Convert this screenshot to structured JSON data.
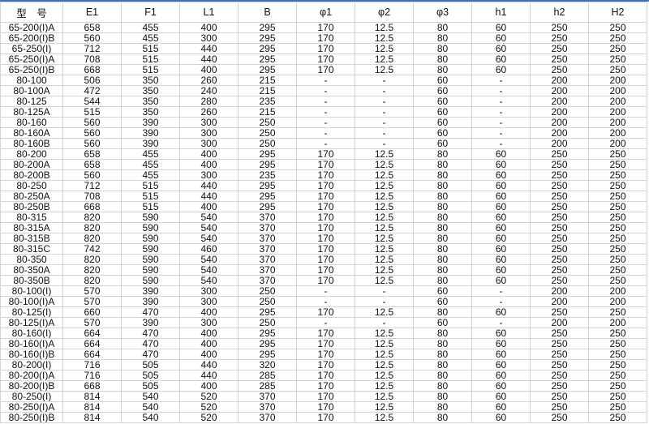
{
  "table": {
    "headers": [
      "型　号",
      "E1",
      "F1",
      "L1",
      "B",
      "φ1",
      "φ2",
      "φ3",
      "h1",
      "h2",
      "H2"
    ],
    "rows": [
      [
        "65-200(I)A",
        "658",
        "455",
        "400",
        "295",
        "170",
        "12.5",
        "80",
        "60",
        "250",
        "250"
      ],
      [
        "65-200(I)B",
        "560",
        "455",
        "300",
        "295",
        "170",
        "12.5",
        "80",
        "60",
        "250",
        "250"
      ],
      [
        "65-250(I)",
        "712",
        "515",
        "440",
        "295",
        "170",
        "12.5",
        "80",
        "60",
        "250",
        "250"
      ],
      [
        "65-250(I)A",
        "708",
        "515",
        "440",
        "295",
        "170",
        "12.5",
        "80",
        "60",
        "250",
        "250"
      ],
      [
        "65-250(I)B",
        "668",
        "515",
        "400",
        "295",
        "170",
        "12.5",
        "80",
        "60",
        "250",
        "250"
      ],
      [
        "80-100",
        "506",
        "350",
        "260",
        "215",
        "-",
        "-",
        "60",
        "-",
        "200",
        "200"
      ],
      [
        "80-100A",
        "472",
        "350",
        "240",
        "215",
        "-",
        "-",
        "60",
        "-",
        "200",
        "200"
      ],
      [
        "80-125",
        "544",
        "350",
        "280",
        "235",
        "-",
        "-",
        "60",
        "-",
        "200",
        "200"
      ],
      [
        "80-125A",
        "515",
        "350",
        "260",
        "215",
        "-",
        "-",
        "60",
        "-",
        "200",
        "200"
      ],
      [
        "80-160",
        "560",
        "390",
        "300",
        "250",
        "-",
        "-",
        "60",
        "-",
        "200",
        "200"
      ],
      [
        "80-160A",
        "560",
        "390",
        "300",
        "250",
        "-",
        "-",
        "60",
        "-",
        "200",
        "200"
      ],
      [
        "80-160B",
        "560",
        "390",
        "300",
        "250",
        "-",
        "-",
        "60",
        "-",
        "200",
        "200"
      ],
      [
        "80-200",
        "658",
        "455",
        "400",
        "295",
        "170",
        "12.5",
        "80",
        "60",
        "250",
        "250"
      ],
      [
        "80-200A",
        "658",
        "455",
        "400",
        "295",
        "170",
        "12.5",
        "80",
        "60",
        "250",
        "250"
      ],
      [
        "80-200B",
        "560",
        "455",
        "300",
        "235",
        "170",
        "12.5",
        "80",
        "60",
        "250",
        "250"
      ],
      [
        "80-250",
        "712",
        "515",
        "440",
        "295",
        "170",
        "12.5",
        "80",
        "60",
        "250",
        "250"
      ],
      [
        "80-250A",
        "708",
        "515",
        "440",
        "295",
        "170",
        "12.5",
        "80",
        "60",
        "250",
        "250"
      ],
      [
        "80-250B",
        "668",
        "515",
        "400",
        "295",
        "170",
        "12.5",
        "80",
        "60",
        "250",
        "250"
      ],
      [
        "80-315",
        "820",
        "590",
        "540",
        "370",
        "170",
        "12.5",
        "80",
        "60",
        "250",
        "250"
      ],
      [
        "80-315A",
        "820",
        "590",
        "540",
        "370",
        "170",
        "12.5",
        "80",
        "60",
        "250",
        "250"
      ],
      [
        "80-315B",
        "820",
        "590",
        "540",
        "370",
        "170",
        "12.5",
        "80",
        "60",
        "250",
        "250"
      ],
      [
        "80-315C",
        "742",
        "590",
        "460",
        "370",
        "170",
        "12.5",
        "80",
        "60",
        "250",
        "250"
      ],
      [
        "80-350",
        "820",
        "590",
        "540",
        "370",
        "170",
        "12.5",
        "80",
        "60",
        "250",
        "250"
      ],
      [
        "80-350A",
        "820",
        "590",
        "540",
        "370",
        "170",
        "12.5",
        "80",
        "60",
        "250",
        "250"
      ],
      [
        "80-350B",
        "820",
        "590",
        "540",
        "370",
        "170",
        "12.5",
        "80",
        "60",
        "250",
        "250"
      ],
      [
        "80-100(I)",
        "570",
        "390",
        "300",
        "250",
        "-",
        "-",
        "60",
        "-",
        "200",
        "200"
      ],
      [
        "80-100(I)A",
        "570",
        "390",
        "300",
        "250",
        "-",
        "-",
        "60",
        "-",
        "200",
        "200"
      ],
      [
        "80-125(I)",
        "660",
        "470",
        "400",
        "295",
        "170",
        "12.5",
        "80",
        "60",
        "250",
        "250"
      ],
      [
        "80-125(I)A",
        "570",
        "390",
        "300",
        "250",
        "-",
        "-",
        "60",
        "-",
        "200",
        "200"
      ],
      [
        "80-160(I)",
        "664",
        "470",
        "400",
        "295",
        "170",
        "12.5",
        "80",
        "60",
        "250",
        "250"
      ],
      [
        "80-160(I)A",
        "664",
        "470",
        "400",
        "295",
        "170",
        "12.5",
        "80",
        "60",
        "250",
        "250"
      ],
      [
        "80-160(I)B",
        "664",
        "470",
        "400",
        "295",
        "170",
        "12.5",
        "80",
        "60",
        "250",
        "250"
      ],
      [
        "80-200(I)",
        "716",
        "505",
        "440",
        "320",
        "170",
        "12.5",
        "80",
        "60",
        "250",
        "250"
      ],
      [
        "80-200(I)A",
        "716",
        "505",
        "440",
        "285",
        "170",
        "12.5",
        "80",
        "60",
        "250",
        "250"
      ],
      [
        "80-200(I)B",
        "668",
        "505",
        "400",
        "285",
        "170",
        "12.5",
        "80",
        "60",
        "250",
        "250"
      ],
      [
        "80-250(I)",
        "814",
        "540",
        "520",
        "370",
        "170",
        "12.5",
        "80",
        "60",
        "250",
        "250"
      ],
      [
        "80-250(I)A",
        "814",
        "540",
        "520",
        "370",
        "170",
        "12.5",
        "80",
        "60",
        "250",
        "250"
      ],
      [
        "80-250(I)B",
        "814",
        "540",
        "520",
        "370",
        "170",
        "12.5",
        "80",
        "60",
        "250",
        "250"
      ]
    ]
  },
  "colors": {
    "top_border": "#3b73b3",
    "grid": "#d4d4d4"
  }
}
